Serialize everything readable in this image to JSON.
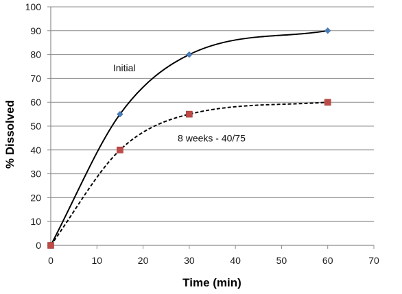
{
  "chart_data": {
    "type": "line",
    "title": "",
    "xlabel": "Time (min)",
    "ylabel": "% Dissolved",
    "xlim": [
      0,
      70
    ],
    "ylim": [
      0,
      100
    ],
    "x_ticks": [
      0,
      10,
      20,
      30,
      40,
      50,
      60,
      70
    ],
    "y_ticks": [
      0,
      10,
      20,
      30,
      40,
      50,
      60,
      70,
      80,
      90,
      100
    ],
    "grid": "horizontal",
    "series": [
      {
        "name": "Initial",
        "x": [
          0,
          15,
          30,
          60
        ],
        "values": [
          0,
          55,
          80,
          90
        ],
        "color": "#4a7ebb",
        "marker": "diamond",
        "line_style": "solid",
        "line_color": "#000000"
      },
      {
        "name": "8 weeks - 40/75",
        "x": [
          0,
          15,
          30,
          60
        ],
        "values": [
          0,
          40,
          55,
          60
        ],
        "color": "#be4b48",
        "marker": "square",
        "line_style": "dashed",
        "line_color": "#000000"
      }
    ],
    "annotations": [
      {
        "text": "Initial",
        "x": 13.5,
        "y": 73
      },
      {
        "text": "8 weeks - 40/75",
        "x": 27.5,
        "y": 43.5
      }
    ]
  }
}
